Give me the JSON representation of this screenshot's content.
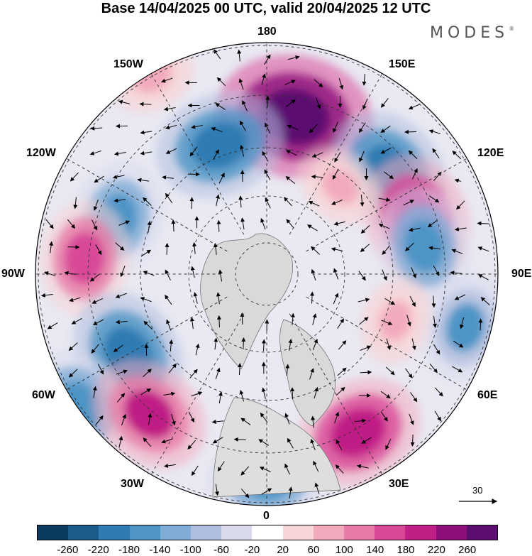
{
  "title": "Base 14/04/2025 00 UTC, valid 20/04/2025 12 UTC",
  "brand": "MODES",
  "brand_mark": "®",
  "longitude_labels": {
    "top": "180",
    "bottom": "0",
    "left": "90W",
    "right": "90E",
    "upper_left_1": "150W",
    "upper_left_2": "120W",
    "lower_left_1": "60W",
    "lower_left_2": "30W",
    "upper_right_1": "150E",
    "upper_right_2": "120E",
    "lower_right_1": "60E",
    "lower_right_2": "30E"
  },
  "reference_vector": {
    "label": "30"
  },
  "colorbar": {
    "colors": [
      "#0b3b5e",
      "#1a5d8c",
      "#2f7bb3",
      "#4e95c6",
      "#7fadd6",
      "#b0bfdf",
      "#d9dbec",
      "#ffffff",
      "#f7d4d6",
      "#f2abbd",
      "#e77aa7",
      "#d84a97",
      "#c01f85",
      "#8f0f7a",
      "#5c0e70"
    ],
    "tick_labels": [
      "-260",
      "-220",
      "-180",
      "-140",
      "-100",
      "-60",
      "-20",
      "20",
      "60",
      "100",
      "140",
      "180",
      "220",
      "260"
    ]
  },
  "anomaly_centers": [
    {
      "lon": 170,
      "lat": 55,
      "level": 260,
      "polarity": "positive"
    },
    {
      "lon": -160,
      "lat": 60,
      "level": 180,
      "polarity": "negative"
    },
    {
      "lon": 130,
      "lat": 55,
      "level": 180,
      "polarity": "negative"
    },
    {
      "lon": -110,
      "lat": 55,
      "level": 140,
      "polarity": "negative"
    },
    {
      "lon": -95,
      "lat": 50,
      "level": 140,
      "polarity": "positive"
    },
    {
      "lon": -60,
      "lat": 55,
      "level": 180,
      "polarity": "negative"
    },
    {
      "lon": -55,
      "lat": 40,
      "level": 140,
      "polarity": "negative"
    },
    {
      "lon": -40,
      "lat": 50,
      "level": 160,
      "polarity": "positive"
    },
    {
      "lon": 110,
      "lat": 55,
      "level": 180,
      "polarity": "positive"
    },
    {
      "lon": 100,
      "lat": 55,
      "level": 140,
      "polarity": "negative"
    },
    {
      "lon": 75,
      "lat": 45,
      "level": 120,
      "polarity": "negative"
    },
    {
      "lon": 70,
      "lat": 60,
      "level": 60,
      "polarity": "positive"
    },
    {
      "lon": 30,
      "lat": 50,
      "level": 180,
      "polarity": "positive"
    },
    {
      "lon": 0,
      "lat": 45,
      "level": 140,
      "polarity": "negative"
    },
    {
      "lon": 140,
      "lat": 65,
      "level": 60,
      "polarity": "positive"
    },
    {
      "lon": -150,
      "lat": 40,
      "level": 60,
      "polarity": "positive"
    }
  ]
}
